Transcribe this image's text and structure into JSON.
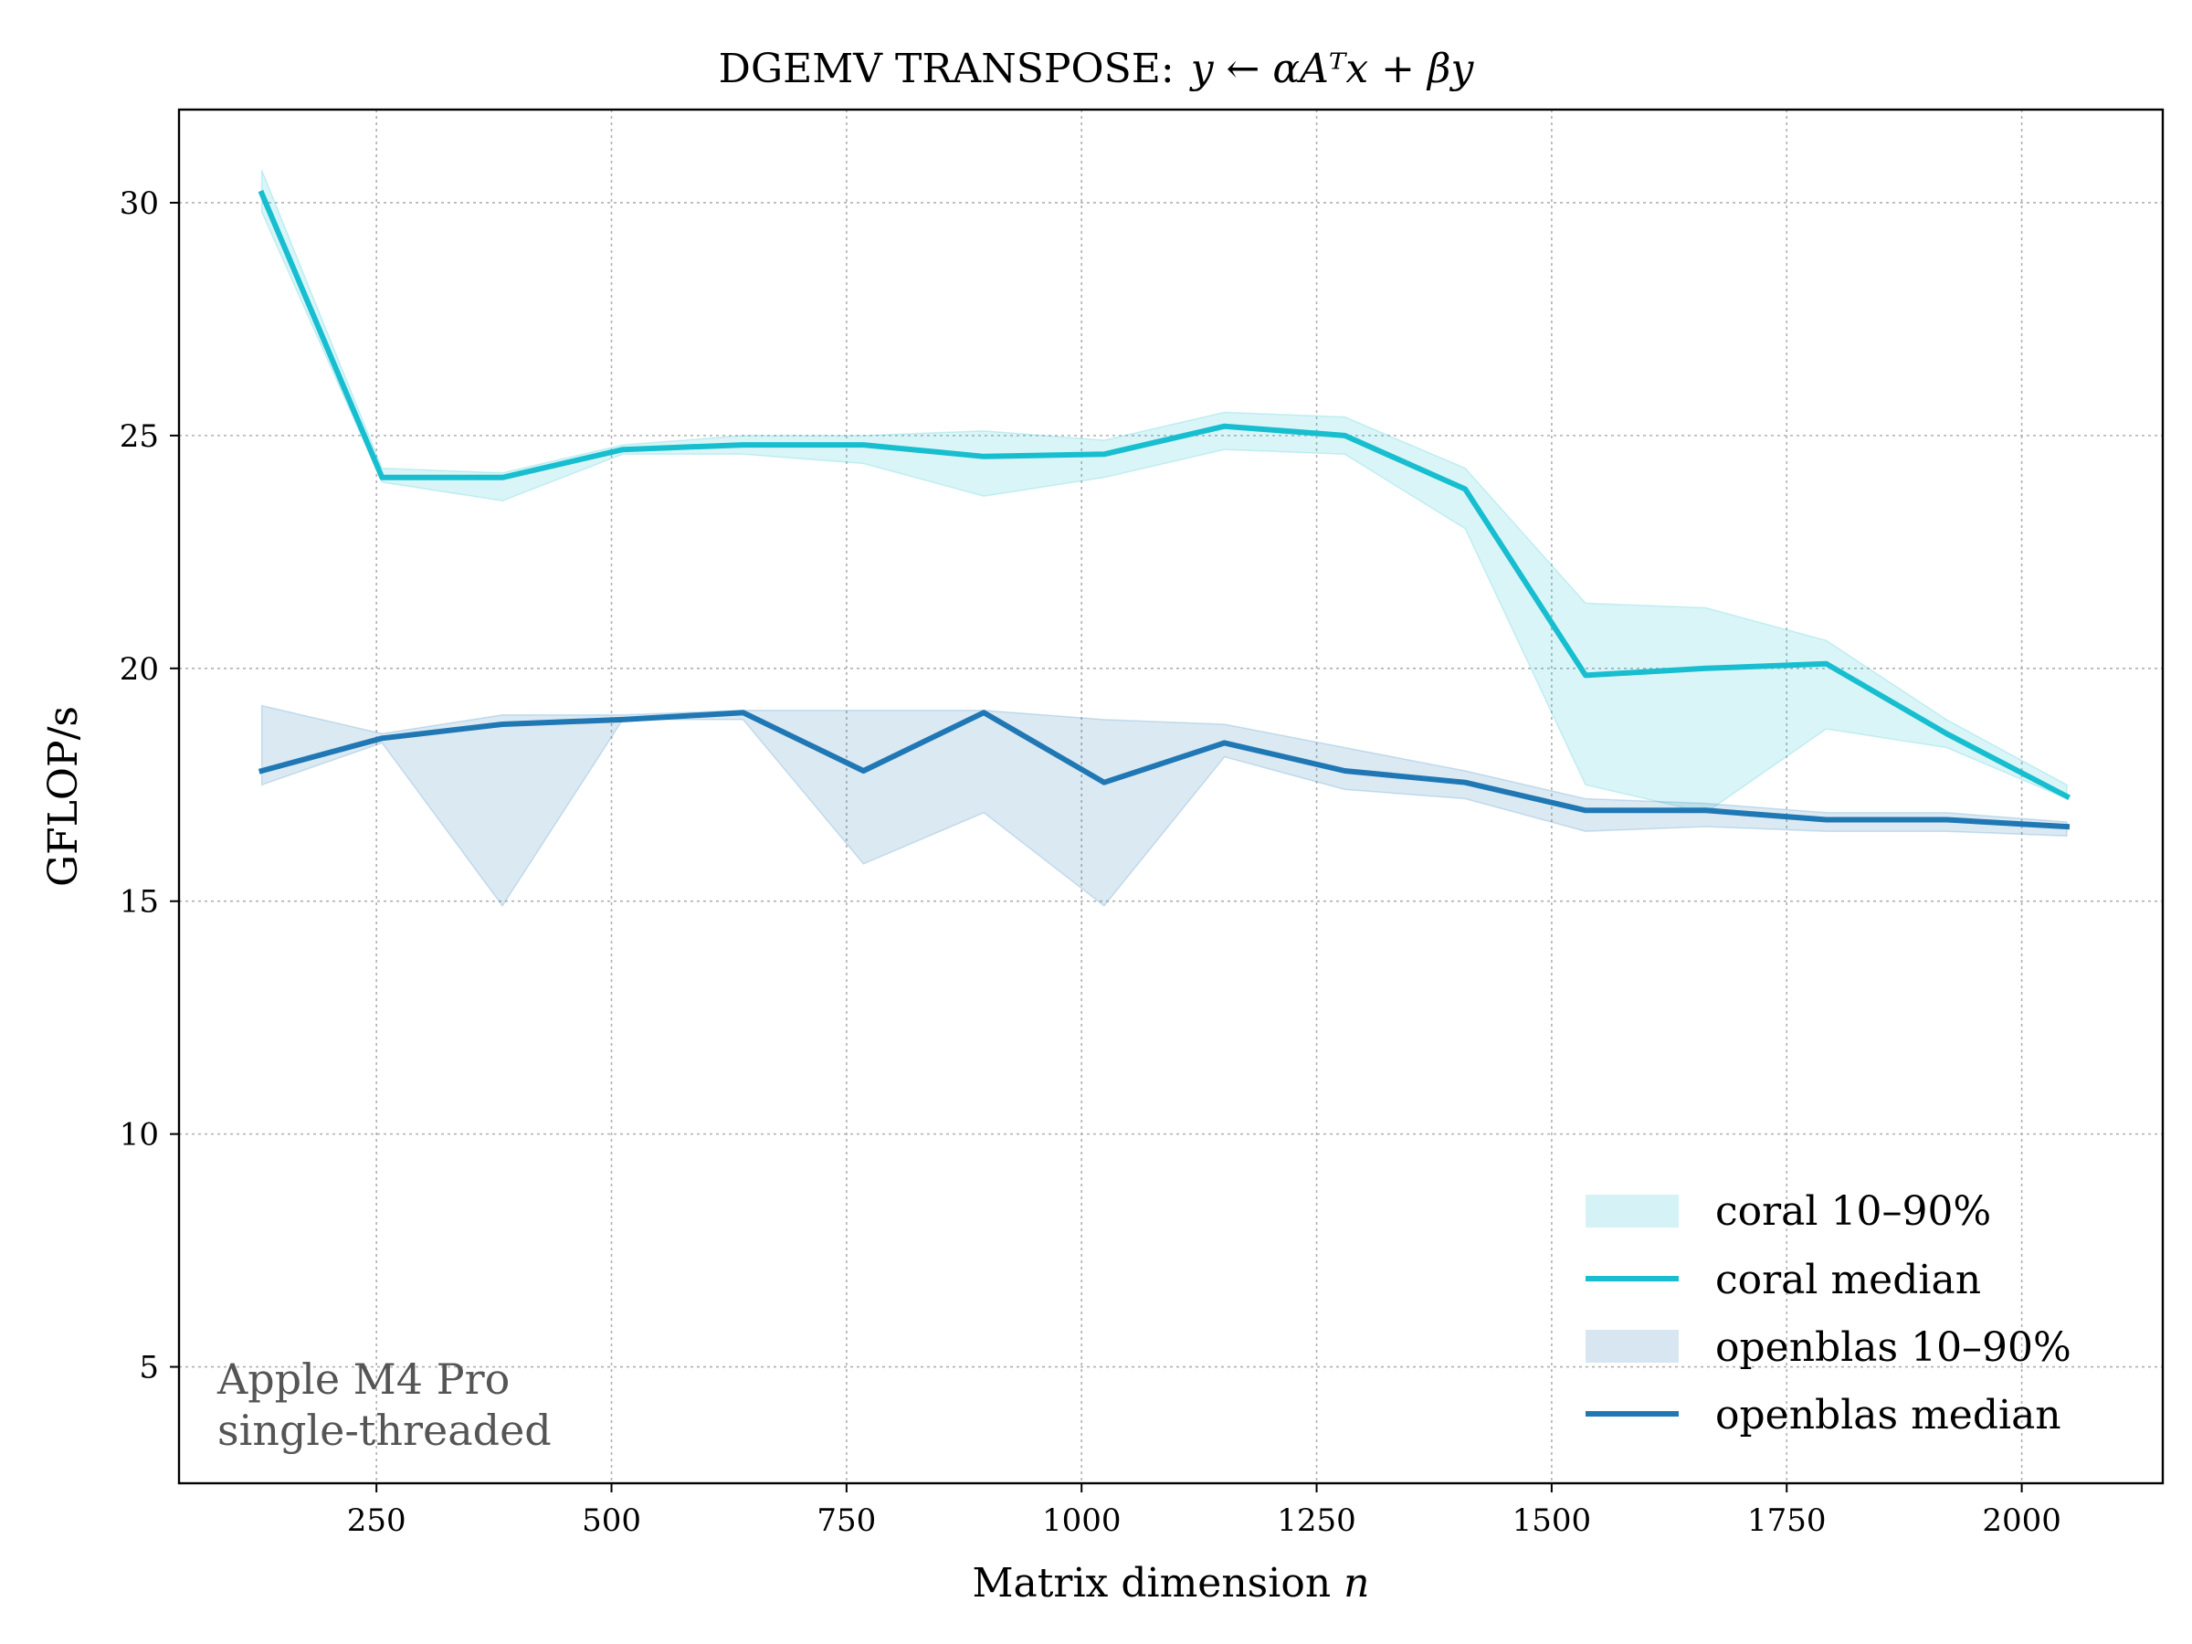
{
  "chart_data": {
    "type": "line",
    "title": "DGEMV TRANSPOSE:",
    "title_equation": "y ← αAᵀx + βy",
    "xlabel": "Matrix dimension",
    "xlabel_var": "n",
    "ylabel": "GFLOP/s",
    "xlim": [
      40,
      2150
    ],
    "ylim": [
      2.5,
      32
    ],
    "xticks": [
      250,
      500,
      750,
      1000,
      1250,
      1500,
      1750,
      2000
    ],
    "yticks": [
      5,
      10,
      15,
      20,
      25,
      30
    ],
    "grid": true,
    "legend_position": "lower-right",
    "x": [
      128,
      256,
      384,
      512,
      640,
      768,
      896,
      1024,
      1152,
      1280,
      1408,
      1536,
      1664,
      1792,
      1920,
      2048
    ],
    "series": [
      {
        "name": "coral median",
        "band_name": "coral 10–90%",
        "color": "#17becf",
        "median": [
          30.2,
          24.1,
          24.1,
          24.7,
          24.8,
          24.8,
          24.55,
          24.6,
          25.2,
          25.0,
          23.85,
          19.85,
          20.0,
          20.1,
          18.6,
          17.25
        ],
        "p10": [
          29.8,
          24.0,
          23.6,
          24.6,
          24.6,
          24.4,
          23.7,
          24.1,
          24.7,
          24.6,
          23.0,
          17.5,
          16.9,
          18.7,
          18.3,
          17.2
        ],
        "p90": [
          30.7,
          24.3,
          24.2,
          24.8,
          25.0,
          25.0,
          25.1,
          24.9,
          25.5,
          25.4,
          24.3,
          21.4,
          21.3,
          20.6,
          18.9,
          17.5
        ]
      },
      {
        "name": "openblas median",
        "band_name": "openblas 10–90%",
        "color": "#1f77b4",
        "median": [
          17.8,
          18.5,
          18.8,
          18.9,
          19.05,
          17.8,
          19.05,
          17.55,
          18.4,
          17.8,
          17.55,
          16.95,
          16.95,
          16.75,
          16.75,
          16.6
        ],
        "p10": [
          17.5,
          18.4,
          14.9,
          18.9,
          18.9,
          15.8,
          16.9,
          14.9,
          18.1,
          17.4,
          17.2,
          16.5,
          16.6,
          16.5,
          16.5,
          16.4
        ],
        "p90": [
          19.2,
          18.6,
          19.0,
          19.0,
          19.1,
          19.1,
          19.1,
          18.9,
          18.8,
          18.3,
          17.8,
          17.2,
          17.1,
          16.9,
          16.9,
          16.7
        ]
      }
    ],
    "legend": [
      {
        "label": "coral 10–90%",
        "kind": "band",
        "color": "#17becf"
      },
      {
        "label": "coral median",
        "kind": "line",
        "color": "#17becf"
      },
      {
        "label": "openblas 10–90%",
        "kind": "band",
        "color": "#1f77b4"
      },
      {
        "label": "openblas median",
        "kind": "line",
        "color": "#1f77b4"
      }
    ],
    "annotation": [
      "Apple M4 Pro",
      "single-threaded"
    ]
  }
}
